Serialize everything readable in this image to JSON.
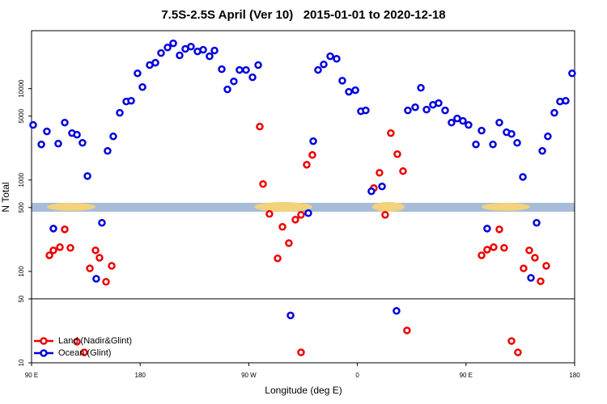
{
  "chart_data": {
    "type": "scatter",
    "title": "7.5S-2.5S April (Ver 10)   2015-01-01 to 2020-12-18",
    "x_label": "Longitude (deg E)",
    "y_label": "N Total",
    "xlim": [
      90,
      540
    ],
    "xticks": [
      {
        "value": 90,
        "label": "90 E"
      },
      180,
      {
        "value": 270,
        "label": "90 W"
      },
      {
        "value": 360,
        "label": "0"
      },
      {
        "value": 450,
        "label": "90 E"
      },
      {
        "value": 540,
        "label": "180"
      }
    ],
    "ylim": [
      10,
      43000
    ],
    "log_y": true,
    "yticks": [
      10,
      50,
      100,
      500,
      1000,
      5000,
      10000
    ],
    "legend": "lower left",
    "series": [
      {
        "name": "Land (Nadir&Glint)",
        "color": "#ee0000",
        "x": [
          104.8,
          108.1,
          113.5,
          117.5,
          122.2,
          127.6,
          133.6,
          138.3,
          143.0,
          146.3,
          151.7,
          156.4,
          279.1,
          281.8,
          287.1,
          293.9,
          297.9,
          303.2,
          308.6,
          313.3,
          313.3,
          318.0,
          322.7,
          373.6,
          378.3,
          383.0,
          387.7,
          393.1,
          397.8,
          401.1,
          462.9,
          467.5,
          472.9,
          477.6,
          481.6,
          487.7,
          493.0,
          497.7,
          502.4,
          507.1,
          511.8,
          516.5
        ],
        "values": [
          150,
          170,
          184,
          288,
          181,
          17,
          13,
          108,
          170,
          141,
          77,
          115,
          3840,
          904,
          425,
          139,
          307,
          204,
          368,
          416,
          13,
          1470,
          1880,
          816,
          1200,
          416,
          3260,
          1920,
          1250,
          22.6,
          150,
          173,
          184,
          288,
          181,
          17.3,
          13,
          108,
          170,
          141,
          78,
          115
        ]
      },
      {
        "name": "Ocean (Glint)",
        "color": "#0000dd",
        "x": [
          91.3,
          98.1,
          102.7,
          112.1,
          117.5,
          123.5,
          127.6,
          132.2,
          136.3,
          108.1,
          143.6,
          148.3,
          153.0,
          157.7,
          163.1,
          168.5,
          172.5,
          177.8,
          181.9,
          187.9,
          192.6,
          197.3,
          202.7,
          207.4,
          212.7,
          217.4,
          222.1,
          227.5,
          232.2,
          237.5,
          241.6,
          247.6,
          252.3,
          257.6,
          262.3,
          267.7,
          273.1,
          277.8,
          304.6,
          319.3,
          323.4,
          327.4,
          332.1,
          337.5,
          342.8,
          347.5,
          352.9,
          358.3,
          362.9,
          366.9,
          371.6,
          380.4,
          392.4,
          401.8,
          407.9,
          412.6,
          417.3,
          422.6,
          427.3,
          432.7,
          438.0,
          442.7,
          447.4,
          452.1,
          458.2,
          462.9,
          472.3,
          477.6,
          483.6,
          487.7,
          492.4,
          497.1,
          467.5,
          503.8,
          508.5,
          513.2,
          517.8,
          523.2,
          527.9,
          532.6,
          537.9
        ],
        "values": [
          4000,
          2450,
          3400,
          2500,
          4250,
          3260,
          3130,
          2550,
          1105,
          294,
          83,
          340,
          2080,
          3000,
          5430,
          7220,
          7360,
          14700,
          10400,
          18100,
          19200,
          24500,
          28200,
          31300,
          23100,
          27200,
          28800,
          25500,
          26600,
          22600,
          26100,
          16300,
          9800,
          12000,
          16000,
          16000,
          13300,
          18100,
          33,
          434,
          2660,
          16000,
          18400,
          22600,
          21200,
          12200,
          9230,
          9600,
          5650,
          5770,
          752,
          850,
          37,
          5770,
          6250,
          10200,
          5890,
          6650,
          6930,
          5770,
          4250,
          4710,
          4430,
          4000,
          2450,
          3470,
          2450,
          4250,
          3330,
          3190,
          2550,
          1080,
          294,
          85,
          340,
          2080,
          3000,
          5430,
          7220,
          7360,
          14700
        ]
      }
    ]
  }
}
